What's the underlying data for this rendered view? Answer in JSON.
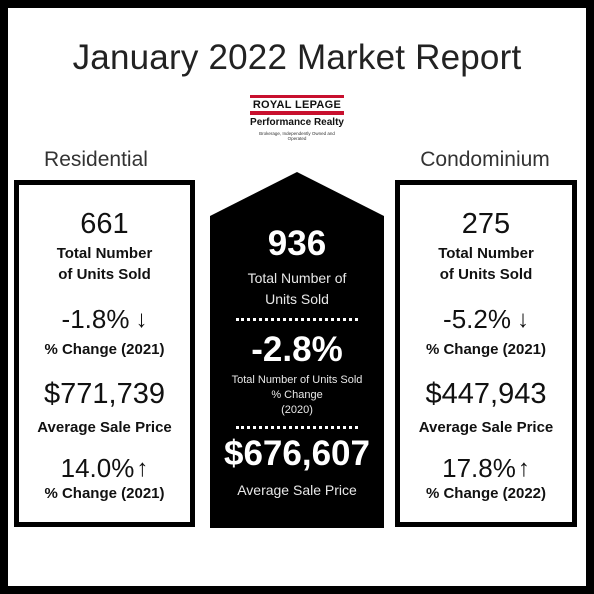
{
  "title": "January 2022 Market Report",
  "logo": {
    "line1": "ROYAL LEPAGE",
    "line2": "Performance Realty",
    "line3": "Brokerage, Independently Owned and Operated"
  },
  "residential": {
    "label": "Residential",
    "units": "661",
    "units_label_1": "Total Number",
    "units_label_2": "of Units Sold",
    "units_change": "-1.8%",
    "units_change_label": "% Change (2021)",
    "avg_price": "$771,739",
    "avg_price_label": "Average Sale Price",
    "price_change": "14.0%",
    "price_change_label": "% Change (2021)"
  },
  "total": {
    "units": "936",
    "units_label_1": "Total Number of",
    "units_label_2": "Units Sold",
    "change": "-2.8%",
    "change_label_1": "Total Number of Units Sold",
    "change_label_2": "% Change",
    "change_label_3": "(2020)",
    "avg_price": "$676,607",
    "avg_price_label": "Average Sale Price"
  },
  "condominium": {
    "label": "Condominium",
    "units": "275",
    "units_label_1": "Total Number",
    "units_label_2": "of Units Sold",
    "units_change": "-5.2%",
    "units_change_label": "% Change (2021)",
    "avg_price": "$447,943",
    "avg_price_label": "Average Sale Price",
    "price_change": "17.8%",
    "price_change_label": "% Change (2022)"
  },
  "colors": {
    "down": "#d22b3a",
    "up": "#1f9d4f",
    "brand_red": "#c8102e"
  },
  "icons": {
    "down": "down-arrow-icon",
    "up": "up-arrow-icon"
  }
}
